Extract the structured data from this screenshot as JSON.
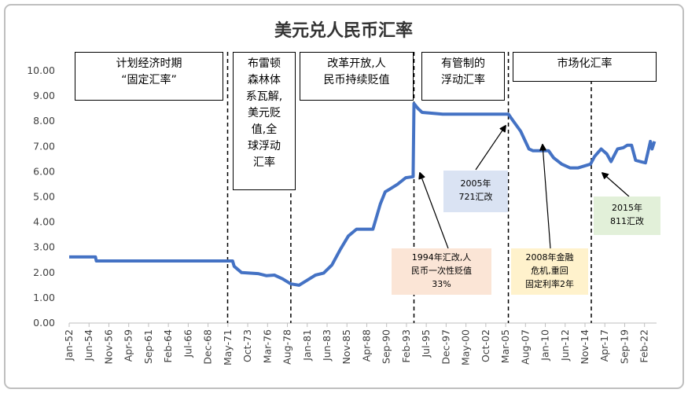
{
  "chart_data": {
    "type": "line",
    "title": "美元兑人民币汇率",
    "color": "#4472c4",
    "x": [
      1952,
      1955.2,
      1955.3,
      1971.9,
      1972.1,
      1973,
      1975,
      1976,
      1977,
      1978,
      1979,
      1980,
      1981,
      1982,
      1983,
      1984,
      1985,
      1986,
      1987,
      1989,
      1989.9,
      1990.5,
      1991,
      1992,
      1993,
      1993.9,
      1994,
      1994.5,
      1995,
      1996,
      1997.5,
      2005.5,
      2006,
      2007,
      2008,
      2008.5,
      2010.4,
      2011,
      2012,
      2013,
      2014,
      2015.5,
      2016,
      2016.8,
      2017.5,
      2018,
      2018.8,
      2019.5,
      2020,
      2020.5,
      2021,
      2021.8,
      2022.2,
      2022.8,
      2023,
      2023.3
    ],
    "values": [
      2.62,
      2.62,
      2.46,
      2.46,
      2.25,
      2.0,
      1.96,
      1.88,
      1.9,
      1.75,
      1.55,
      1.5,
      1.7,
      1.9,
      1.98,
      2.3,
      2.9,
      3.45,
      3.72,
      3.72,
      4.72,
      5.2,
      5.3,
      5.5,
      5.76,
      5.8,
      8.7,
      8.5,
      8.35,
      8.32,
      8.28,
      8.28,
      8.05,
      7.6,
      6.9,
      6.83,
      6.83,
      6.55,
      6.3,
      6.15,
      6.15,
      6.3,
      6.6,
      6.9,
      6.7,
      6.4,
      6.9,
      6.95,
      7.05,
      7.05,
      6.45,
      6.38,
      6.35,
      7.2,
      6.9,
      7.2
    ],
    "xlim": [
      1952,
      2023.55
    ],
    "xticks": [
      {
        "value": 1952.0,
        "label": "Jan-52"
      },
      {
        "value": 1954.4167,
        "label": "Jun-54"
      },
      {
        "value": 1956.8333,
        "label": "Nov-56"
      },
      {
        "value": 1959.25,
        "label": "Apr-59"
      },
      {
        "value": 1961.6667,
        "label": "Sep-61"
      },
      {
        "value": 1964.0833,
        "label": "Feb-64"
      },
      {
        "value": 1966.5,
        "label": "Jul-66"
      },
      {
        "value": 1968.9167,
        "label": "Dec-68"
      },
      {
        "value": 1971.3333,
        "label": "May-71"
      },
      {
        "value": 1973.75,
        "label": "Oct-73"
      },
      {
        "value": 1976.1667,
        "label": "Mar-76"
      },
      {
        "value": 1978.5833,
        "label": "Aug-78"
      },
      {
        "value": 1981.0,
        "label": "Jan-81"
      },
      {
        "value": 1983.4167,
        "label": "Jun-83"
      },
      {
        "value": 1985.8333,
        "label": "Nov-85"
      },
      {
        "value": 1988.25,
        "label": "Apr-88"
      },
      {
        "value": 1990.6667,
        "label": "Sep-90"
      },
      {
        "value": 1993.0833,
        "label": "Feb-93"
      },
      {
        "value": 1995.5,
        "label": "Jul-95"
      },
      {
        "value": 1997.9167,
        "label": "Dec-97"
      },
      {
        "value": 2000.3333,
        "label": "May-00"
      },
      {
        "value": 2002.75,
        "label": "Oct-02"
      },
      {
        "value": 2005.1667,
        "label": "Mar-05"
      },
      {
        "value": 2007.5833,
        "label": "Aug-07"
      },
      {
        "value": 2010.0,
        "label": "Jan-10"
      },
      {
        "value": 2012.4167,
        "label": "Jun-12"
      },
      {
        "value": 2014.8333,
        "label": "Nov-14"
      },
      {
        "value": 2017.25,
        "label": "Apr-17"
      },
      {
        "value": 2019.6667,
        "label": "Sep-19"
      },
      {
        "value": 2022.0833,
        "label": "Feb-22"
      }
    ],
    "ylim": [
      0,
      10
    ],
    "yticks": [
      {
        "value": 0,
        "label": "0.00"
      },
      {
        "value": 1,
        "label": "1.00"
      },
      {
        "value": 2,
        "label": "2.00"
      },
      {
        "value": 3,
        "label": "3.00"
      },
      {
        "value": 4,
        "label": "4.00"
      },
      {
        "value": 5,
        "label": "5.00"
      },
      {
        "value": 6,
        "label": "6.00"
      },
      {
        "value": 7,
        "label": "7.00"
      },
      {
        "value": 8,
        "label": "8.00"
      },
      {
        "value": 9,
        "label": "9.00"
      },
      {
        "value": 10,
        "label": "10.00"
      }
    ],
    "period_dividers": [
      1971.3,
      1979.0,
      1994.0,
      2005.5,
      2015.6
    ],
    "periods": [
      {
        "lines": [
          "计划经济时期",
          "“固定汇率”"
        ]
      },
      {
        "lines": [
          "布雷顿",
          "森林体",
          "系瓦解,",
          "美元贬",
          "值,全",
          "球浮动",
          "汇率"
        ]
      },
      {
        "lines": [
          "改革开放,人",
          "民币持续贬值"
        ]
      },
      {
        "lines": [
          "有管制的",
          "浮动汇率"
        ]
      },
      {
        "lines": [
          "市场化汇率"
        ]
      }
    ],
    "notes": [
      {
        "lines": [
          "1994年汇改,人",
          "民币一次性贬值",
          "33%"
        ],
        "color": "#fbe5d6"
      },
      {
        "lines": [
          "2005年",
          "721汇改"
        ],
        "color": "#dae3f3"
      },
      {
        "lines": [
          "2008年金融",
          "危机,重回",
          "固定利率2年"
        ],
        "color": "#fff2cc"
      },
      {
        "lines": [
          "2015年",
          "811汇改"
        ],
        "color": "#e2f0d9"
      }
    ]
  }
}
